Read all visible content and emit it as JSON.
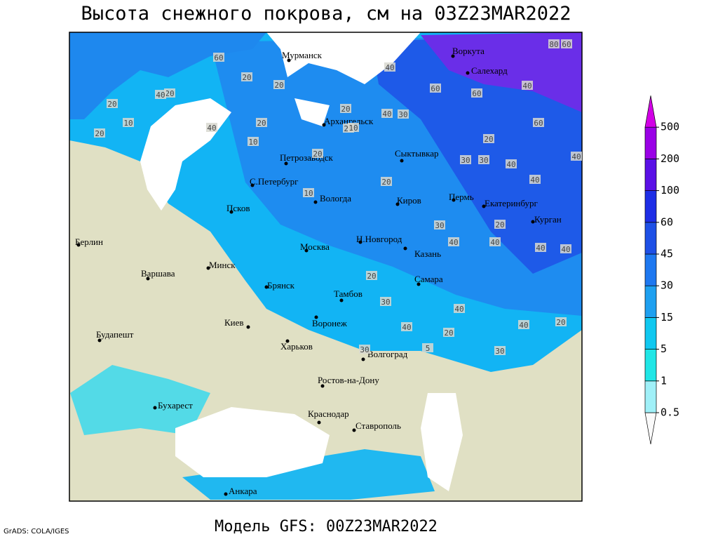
{
  "header": {
    "title": "Высота снежного покрова, см на 03Z23MAR2022"
  },
  "cities": [
    "Мурманск",
    "Воркута",
    "Салехард",
    "Архангельск",
    "Петрозаводск",
    "Сыктывкар",
    "С.Петербург",
    "Вологда",
    "Киров",
    "Пермь",
    "Екатеринбург",
    "Курган",
    "Псков",
    "Берлин",
    "Н.Новгород",
    "Москва",
    "Казань",
    "Минск",
    "Варшава",
    "Брянск",
    "Самара",
    "Тамбов",
    "Киев",
    "Воронеж",
    "Будапешт",
    "Харьков",
    "Волгоград",
    "Ростов-на-Дону",
    "Бухарест",
    "Краснодар",
    "Ставрополь",
    "Анкара"
  ],
  "contour_labels": [
    "60",
    "80",
    "60",
    "20",
    "40",
    "20",
    "20",
    "20",
    "20",
    "40",
    "20",
    "60",
    "60",
    "40",
    "40",
    "20",
    "10",
    "40",
    "20",
    "10",
    "10",
    "40",
    "20",
    "30",
    "30",
    "60",
    "30",
    "20",
    "20",
    "40",
    "40",
    "30",
    "40",
    "20",
    "40",
    "40",
    "40",
    "20",
    "20",
    "30",
    "10",
    "30",
    "5",
    "40",
    "40",
    "20",
    "40",
    "30"
  ],
  "legend": {
    "ticks": [
      0.5,
      1,
      5,
      15,
      30,
      45,
      60,
      100,
      200,
      500
    ],
    "colors": [
      "#fafafa",
      "#a0f0f8",
      "#20e6e6",
      "#10c8f0",
      "#1ea0f0",
      "#1e78f0",
      "#1e50e6",
      "#1e2ee6",
      "#5a10e6",
      "#9a00e6",
      "#d200e6"
    ]
  },
  "footer": {
    "credit": "GrADS: COLA/IGES",
    "model": "Модель GFS: 00Z23MAR2022"
  }
}
